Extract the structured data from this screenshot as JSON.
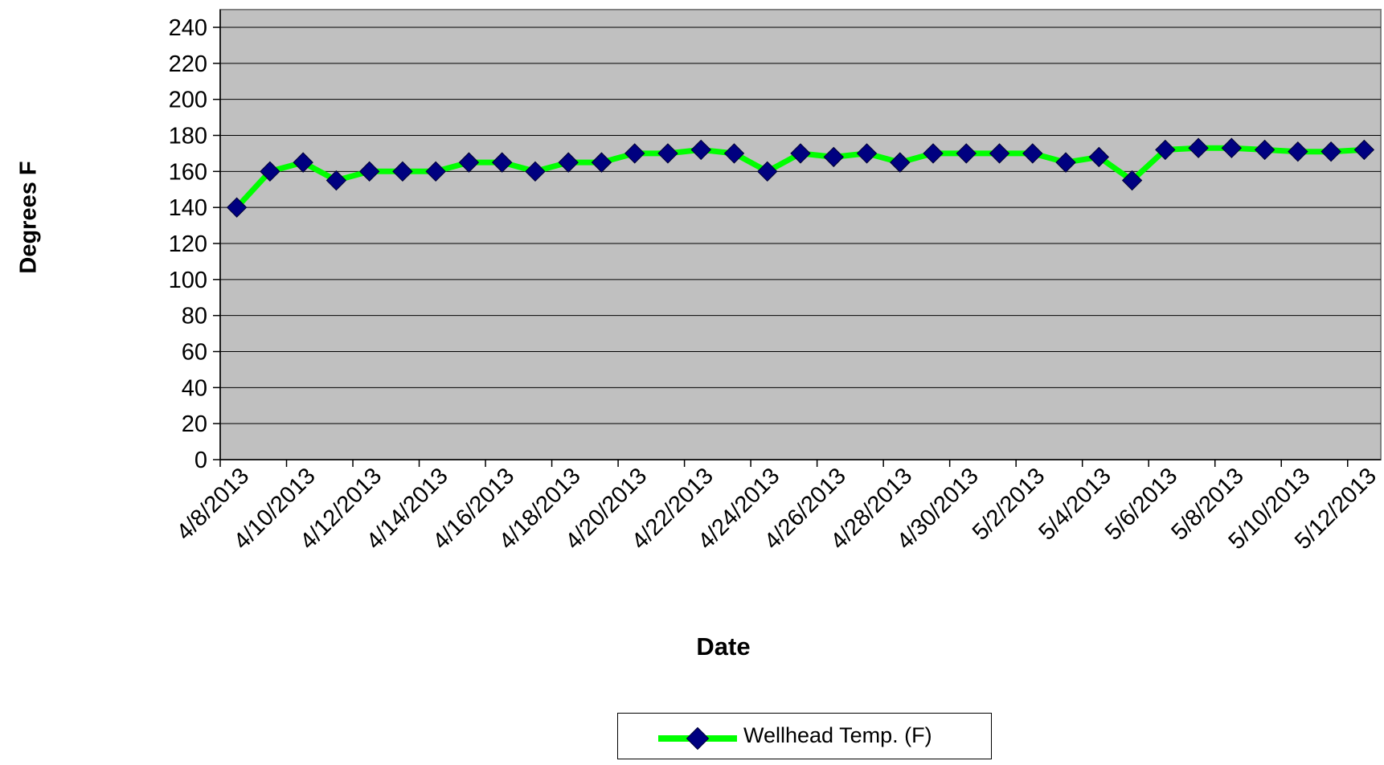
{
  "chart_data": {
    "type": "line",
    "title": "",
    "xlabel": "Date",
    "ylabel": "Degrees F",
    "ylim": [
      0,
      240
    ],
    "yticks": [
      0,
      20,
      40,
      60,
      80,
      100,
      120,
      140,
      160,
      180,
      200,
      220,
      240
    ],
    "grid": true,
    "legend_position": "bottom",
    "colors": {
      "plot_area": "#c0c0c0",
      "line": "#00ff00",
      "marker": "#000080",
      "grid": "#000000"
    },
    "x_tick_labels": [
      "4/8/2013",
      "4/10/2013",
      "4/12/2013",
      "4/14/2013",
      "4/16/2013",
      "4/18/2013",
      "4/20/2013",
      "4/22/2013",
      "4/24/2013",
      "4/26/2013",
      "4/28/2013",
      "4/30/2013",
      "5/2/2013",
      "5/4/2013",
      "5/6/2013",
      "5/8/2013",
      "5/10/2013",
      "5/12/2013"
    ],
    "x": [
      "4/8/2013",
      "4/9/2013",
      "4/10/2013",
      "4/11/2013",
      "4/12/2013",
      "4/13/2013",
      "4/14/2013",
      "4/15/2013",
      "4/16/2013",
      "4/17/2013",
      "4/18/2013",
      "4/19/2013",
      "4/20/2013",
      "4/21/2013",
      "4/22/2013",
      "4/23/2013",
      "4/24/2013",
      "4/25/2013",
      "4/26/2013",
      "4/27/2013",
      "4/28/2013",
      "4/29/2013",
      "4/30/2013",
      "5/1/2013",
      "5/2/2013",
      "5/3/2013",
      "5/4/2013",
      "5/5/2013",
      "5/6/2013",
      "5/7/2013",
      "5/8/2013",
      "5/9/2013",
      "5/10/2013",
      "5/11/2013",
      "5/12/2013"
    ],
    "series": [
      {
        "name": "Wellhead Temp. (F)",
        "values": [
          140,
          160,
          165,
          155,
          160,
          160,
          160,
          165,
          165,
          160,
          165,
          165,
          170,
          170,
          172,
          170,
          160,
          170,
          168,
          170,
          165,
          170,
          170,
          170,
          170,
          165,
          168,
          155,
          172,
          173,
          173,
          172,
          171,
          171,
          172
        ]
      }
    ]
  }
}
